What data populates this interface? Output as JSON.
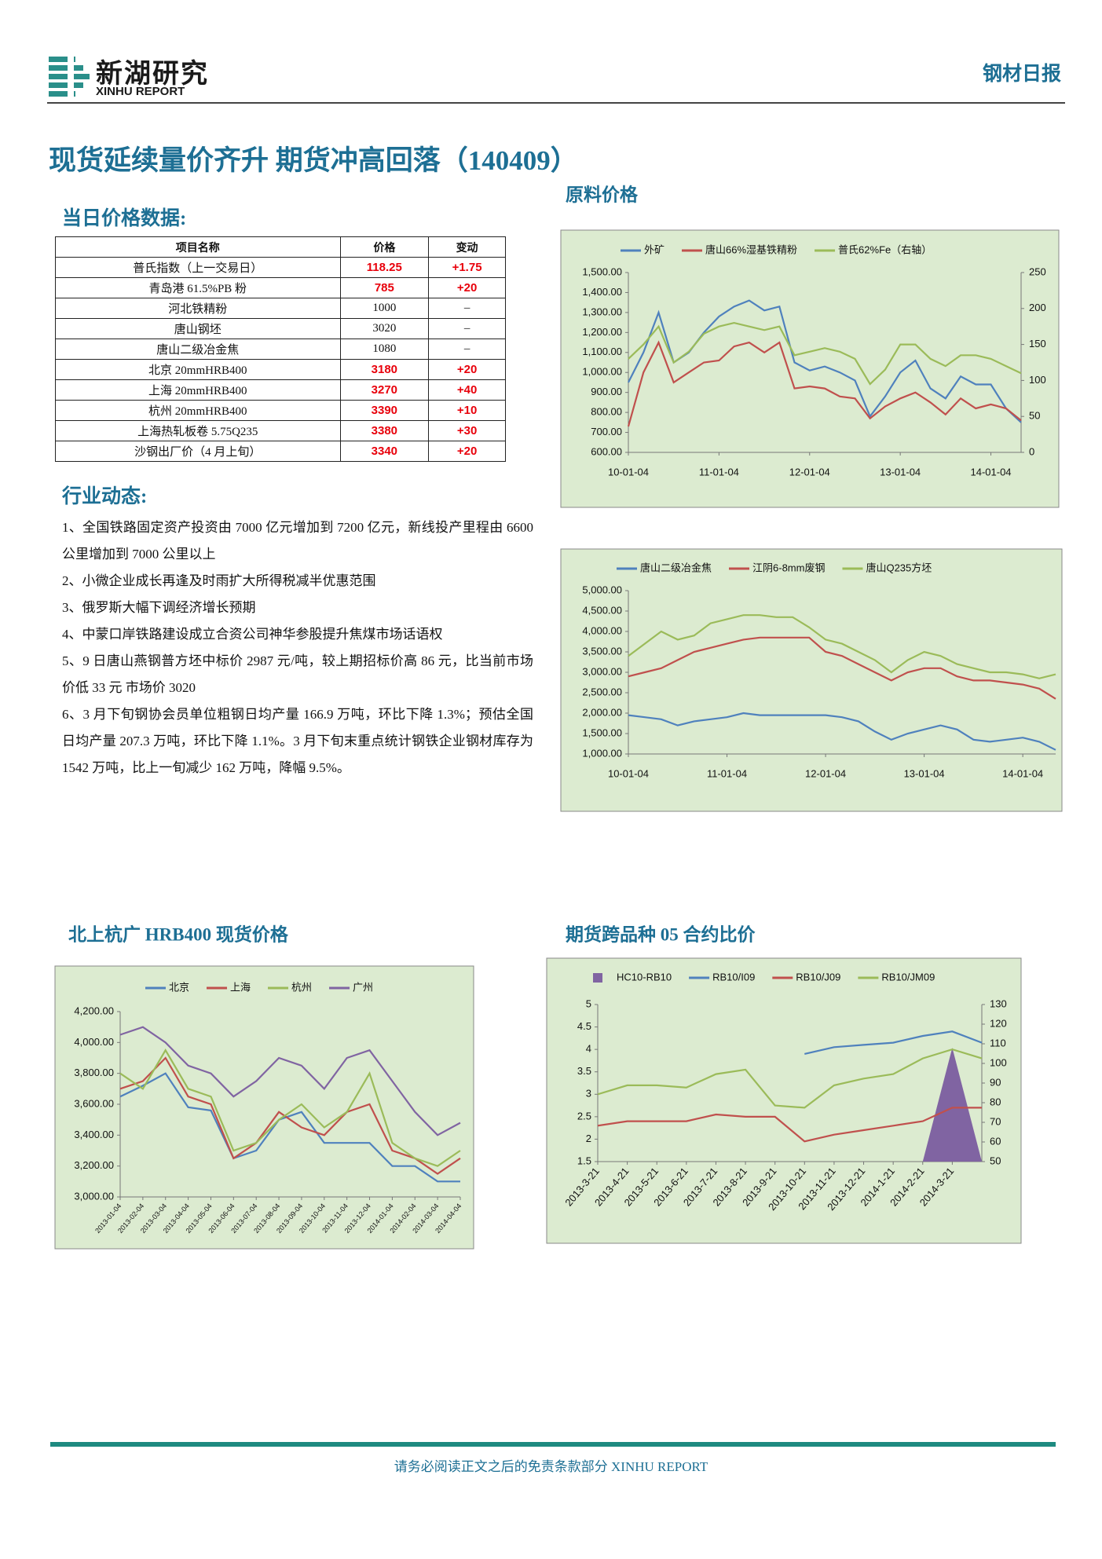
{
  "header": {
    "logo_cn": "新湖研究",
    "logo_en": "XINHU REPORT",
    "report_type": "钢材日报"
  },
  "title": "现货延续量价齐升 期货冲高回落（140409）",
  "price_section": {
    "heading": "当日价格数据:",
    "columns": [
      "项目名称",
      "价格",
      "变动"
    ],
    "rows": [
      {
        "cells": [
          "普氏指数（上一交易日）",
          "118.25",
          "+1.75"
        ],
        "color": "#e8000b"
      },
      {
        "cells": [
          "青岛港 61.5%PB 粉",
          "785",
          "+20"
        ],
        "color": "#e8000b"
      },
      {
        "cells": [
          "河北铁精粉",
          "1000",
          "–"
        ]
      },
      {
        "cells": [
          "唐山钢坯",
          "3020",
          "–"
        ]
      },
      {
        "cells": [
          "唐山二级冶金焦",
          "1080",
          "–"
        ]
      },
      {
        "cells": [
          "北京 20mmHRB400",
          "3180",
          "+20"
        ],
        "color": "#e8000b"
      },
      {
        "cells": [
          "上海 20mmHRB400",
          "3270",
          "+40"
        ],
        "color": "#e8000b"
      },
      {
        "cells": [
          "杭州 20mmHRB400",
          "3390",
          "+10"
        ],
        "color": "#e8000b"
      },
      {
        "cells": [
          "上海热轧板卷 5.75Q235",
          "3380",
          "+30"
        ],
        "color": "#e8000b"
      },
      {
        "cells": [
          "沙钢出厂价（4 月上旬）",
          "3340",
          "+20"
        ],
        "color": "#e8000b"
      }
    ]
  },
  "news": {
    "heading": "行业动态:",
    "items": [
      "1、全国铁路固定资产投资由 7000 亿元增加到 7200 亿元，新线投产里程由 6600 公里增加到 7000 公里以上",
      "2、小微企业成长再逢及时雨扩大所得税减半优惠范围",
      "3、俄罗斯大幅下调经济增长预期",
      "4、中蒙口岸铁路建设成立合资公司神华参股提升焦煤市场话语权",
      "5、9 日唐山燕钢普方坯中标价 2987 元/吨，较上期招标价高 86 元，比当前市场价低 33 元 市场价 3020",
      "6、3 月下旬钢协会员单位粗钢日均产量 166.9 万吨，环比下降 1.3%；预估全国日均产量 207.3 万吨，环比下降 1.1%。3 月下旬末重点统计钢铁企业钢材库存为 1542 万吨，比上一旬减少 162 万吨，降幅 9.5%。"
    ]
  },
  "chart_data": [
    {
      "type": "line",
      "title": "原料价格",
      "categories": [
        "10-01-04",
        null,
        null,
        null,
        null,
        null,
        "11-01-04",
        null,
        null,
        null,
        null,
        null,
        "12-01-04",
        null,
        null,
        null,
        null,
        null,
        "13-01-04",
        null,
        null,
        null,
        null,
        null,
        "14-01-04",
        null,
        null
      ],
      "series": [
        {
          "name": "外矿",
          "color": "#4f81bd",
          "values": [
            950,
            1100,
            1300,
            1050,
            1100,
            1200,
            1280,
            1330,
            1360,
            1310,
            1330,
            1050,
            1010,
            1030,
            1000,
            960,
            780,
            880,
            1000,
            1060,
            920,
            870,
            980,
            940,
            940,
            820,
            750
          ]
        },
        {
          "name": "唐山66%湿基铁精粉",
          "color": "#c0504d",
          "values": [
            730,
            1000,
            1150,
            950,
            1000,
            1050,
            1060,
            1130,
            1150,
            1100,
            1150,
            920,
            930,
            920,
            880,
            870,
            770,
            830,
            870,
            900,
            850,
            790,
            870,
            820,
            840,
            820,
            760
          ]
        },
        {
          "name": "普氏62%Fe（右轴）",
          "color": "#9bbb59",
          "axis": "y2",
          "values": [
            130,
            150,
            175,
            125,
            140,
            165,
            175,
            180,
            175,
            170,
            175,
            135,
            140,
            145,
            140,
            130,
            95,
            115,
            150,
            150,
            130,
            120,
            135,
            135,
            130,
            120,
            110
          ]
        }
      ],
      "ylim": [
        600,
        1500
      ],
      "yticks": [
        {
          "value": 600,
          "label": "600.00"
        },
        {
          "value": 700,
          "label": "700.00"
        },
        {
          "value": 800,
          "label": "800.00"
        },
        {
          "value": 900,
          "label": "900.00"
        },
        {
          "value": 1000,
          "label": "1,000.00"
        },
        {
          "value": 1100,
          "label": "1,100.00"
        },
        {
          "value": 1200,
          "label": "1,200.00"
        },
        {
          "value": 1300,
          "label": "1,300.00"
        },
        {
          "value": 1400,
          "label": "1,400.00"
        },
        {
          "value": 1500,
          "label": "1,500.00"
        }
      ],
      "y2lim": [
        0,
        250
      ],
      "y2ticks": [
        0,
        50,
        100,
        150,
        200,
        250
      ],
      "grid": false
    },
    {
      "type": "line",
      "categories": [
        "10-01-04",
        null,
        null,
        null,
        null,
        null,
        "11-01-04",
        null,
        null,
        null,
        null,
        null,
        "12-01-04",
        null,
        null,
        null,
        null,
        null,
        "13-01-04",
        null,
        null,
        null,
        null,
        null,
        "14-01-04",
        null,
        null
      ],
      "series": [
        {
          "name": "唐山二级冶金焦",
          "color": "#4f81bd",
          "values": [
            1950,
            1900,
            1850,
            1700,
            1800,
            1850,
            1900,
            2000,
            1950,
            1950,
            1950,
            1950,
            1950,
            1900,
            1800,
            1550,
            1350,
            1500,
            1600,
            1700,
            1600,
            1350,
            1300,
            1350,
            1400,
            1300,
            1100
          ]
        },
        {
          "name": "江阴6-8mm废钢",
          "color": "#c0504d",
          "values": [
            2900,
            3000,
            3100,
            3300,
            3500,
            3600,
            3700,
            3800,
            3850,
            3850,
            3850,
            3850,
            3500,
            3400,
            3200,
            3000,
            2800,
            3000,
            3100,
            3100,
            2900,
            2800,
            2800,
            2750,
            2700,
            2600,
            2350
          ]
        },
        {
          "name": "唐山Q235方坯",
          "color": "#9bbb59",
          "values": [
            3400,
            3700,
            4000,
            3800,
            3900,
            4200,
            4300,
            4400,
            4400,
            4350,
            4350,
            4100,
            3800,
            3700,
            3500,
            3300,
            3000,
            3300,
            3500,
            3400,
            3200,
            3100,
            3000,
            3000,
            2950,
            2850,
            2950
          ]
        }
      ],
      "ylim": [
        1000,
        5000
      ],
      "yticks": [
        {
          "value": 1000,
          "label": "1,000.00"
        },
        {
          "value": 1500,
          "label": "1,500.00"
        },
        {
          "value": 2000,
          "label": "2,000.00"
        },
        {
          "value": 2500,
          "label": "2,500.00"
        },
        {
          "value": 3000,
          "label": "3,000.00"
        },
        {
          "value": 3500,
          "label": "3,500.00"
        },
        {
          "value": 4000,
          "label": "4,000.00"
        },
        {
          "value": 4500,
          "label": "4,500.00"
        },
        {
          "value": 5000,
          "label": "5,000.00"
        }
      ],
      "grid": false
    },
    {
      "type": "line",
      "title": "北上杭广 HRB400 现货价格",
      "categories": [
        "2013-01-04",
        "2013-02-04",
        "2013-03-04",
        "2013-04-04",
        "2013-05-04",
        "2013-06-04",
        "2013-07-04",
        "2013-08-04",
        "2013-09-04",
        "2013-10-04",
        "2013-11-04",
        "2013-12-04",
        "2014-01-04",
        "2014-02-04",
        "2014-03-04",
        "2014-04-04"
      ],
      "series": [
        {
          "name": "北京",
          "color": "#4f81bd",
          "values": [
            3650,
            3720,
            3800,
            3580,
            3560,
            3250,
            3300,
            3500,
            3550,
            3350,
            3350,
            3350,
            3200,
            3200,
            3100,
            3100
          ]
        },
        {
          "name": "上海",
          "color": "#c0504d",
          "values": [
            3700,
            3750,
            3900,
            3650,
            3600,
            3250,
            3350,
            3550,
            3450,
            3400,
            3550,
            3600,
            3300,
            3250,
            3150,
            3250
          ]
        },
        {
          "name": "杭州",
          "color": "#9bbb59",
          "values": [
            3800,
            3700,
            3950,
            3700,
            3650,
            3300,
            3350,
            3500,
            3600,
            3450,
            3550,
            3800,
            3350,
            3250,
            3200,
            3300
          ]
        },
        {
          "name": "广州",
          "color": "#8064a2",
          "values": [
            4050,
            4100,
            4000,
            3850,
            3800,
            3650,
            3750,
            3900,
            3850,
            3700,
            3900,
            3950,
            3750,
            3550,
            3400,
            3480
          ]
        }
      ],
      "ylim": [
        3000,
        4200
      ],
      "yticks": [
        {
          "value": 3000,
          "label": "3,000.00"
        },
        {
          "value": 3200,
          "label": "3,200.00"
        },
        {
          "value": 3400,
          "label": "3,400.00"
        },
        {
          "value": 3600,
          "label": "3,600.00"
        },
        {
          "value": 3800,
          "label": "3,800.00"
        },
        {
          "value": 4000,
          "label": "4,000.00"
        },
        {
          "value": 4200,
          "label": "4,200.00"
        }
      ],
      "grid": false
    },
    {
      "type": "line",
      "title": "期货跨品种 05 合约比价",
      "categories": [
        "2013-3-21",
        "2013-4-21",
        "2013-5-21",
        "2013-6-21",
        "2013-7-21",
        "2013-8-21",
        "2013-9-21",
        "2013-10-21",
        "2013-11-21",
        "2013-12-21",
        "2014-1-21",
        "2014-2-21",
        "2014-3-21",
        null
      ],
      "series": [
        {
          "name": "HC10-RB10",
          "color": "#8064a2",
          "type": "area",
          "axis": "y2",
          "values": [
            null,
            null,
            null,
            null,
            null,
            null,
            null,
            null,
            null,
            null,
            null,
            50,
            108,
            50
          ]
        },
        {
          "name": "RB10/I09",
          "color": "#4f81bd",
          "values": [
            null,
            null,
            null,
            null,
            null,
            null,
            null,
            3.9,
            4.05,
            4.1,
            4.15,
            4.3,
            4.4,
            4.15
          ]
        },
        {
          "name": "RB10/J09",
          "color": "#c0504d",
          "values": [
            2.3,
            2.4,
            2.4,
            2.4,
            2.55,
            2.5,
            2.5,
            1.95,
            2.1,
            2.2,
            2.3,
            2.4,
            2.7,
            2.7
          ]
        },
        {
          "name": "RB10/JM09",
          "color": "#9bbb59",
          "values": [
            3.0,
            3.2,
            3.2,
            3.15,
            3.45,
            3.55,
            2.75,
            2.7,
            3.2,
            3.35,
            3.45,
            3.8,
            4.0,
            3.8
          ]
        }
      ],
      "ylim": [
        1.5,
        5
      ],
      "yticks": [
        1.5,
        2,
        2.5,
        3,
        3.5,
        4,
        4.5,
        5
      ],
      "y2lim": [
        50,
        130
      ],
      "y2ticks": [
        50,
        60,
        70,
        80,
        90,
        100,
        110,
        120,
        130
      ],
      "grid": false
    }
  ],
  "footer": "请务必阅读正文之后的免责条款部分 XINHU REPORT"
}
